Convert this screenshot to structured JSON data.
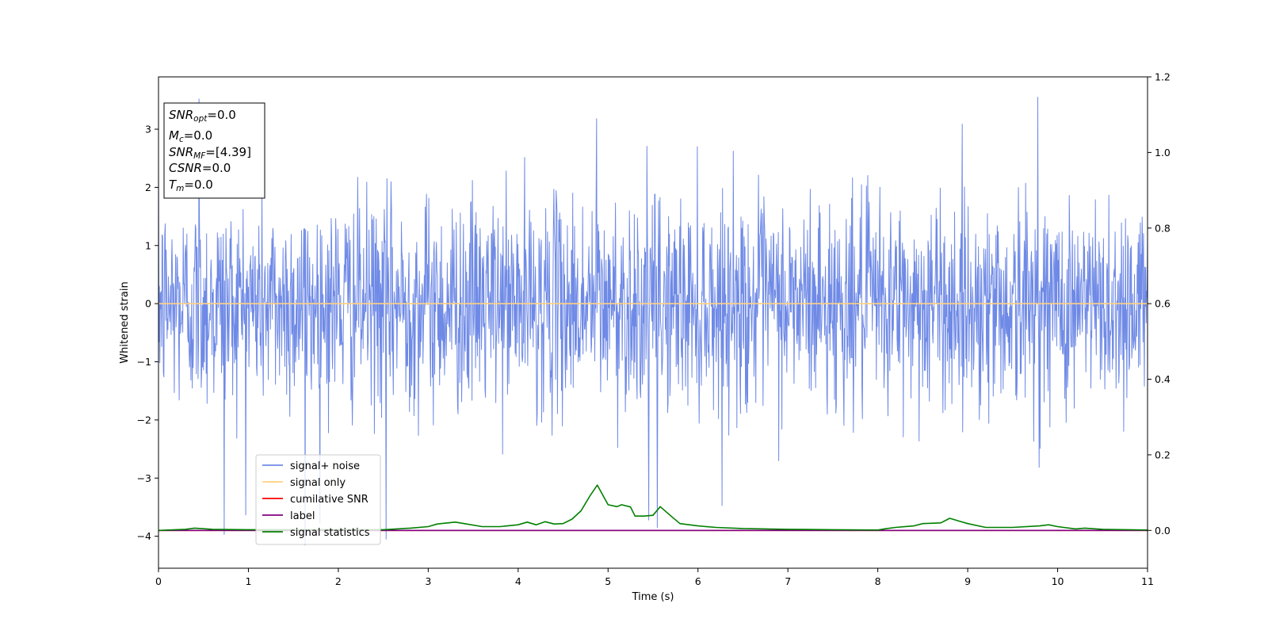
{
  "chart_data": {
    "type": "line",
    "title": "",
    "xlabel": "Time (s)",
    "ylabel": "Whitened strain",
    "xlim": [
      0,
      11
    ],
    "ylim": [
      -4.55,
      3.9
    ],
    "y2lim": [
      -0.1,
      1.2
    ],
    "xticks": [
      "0",
      "1",
      "2",
      "3",
      "4",
      "5",
      "6",
      "7",
      "8",
      "9",
      "10",
      "11"
    ],
    "yticks": [
      {
        "value": 3,
        "label": "3"
      },
      {
        "value": 2,
        "label": "2"
      },
      {
        "value": 1,
        "label": "1"
      },
      {
        "value": 0,
        "label": "0"
      },
      {
        "value": -1,
        "label": "−1"
      },
      {
        "value": -2,
        "label": "−2"
      },
      {
        "value": -3,
        "label": "−3"
      },
      {
        "value": -4,
        "label": "−4"
      }
    ],
    "y2ticks": [
      "0.0",
      "0.2",
      "0.4",
      "0.6",
      "0.8",
      "1.0",
      "1.2"
    ],
    "grid": false,
    "legend_placement": "lower-left",
    "legend": [
      {
        "label": "signal+ noise",
        "color": "#6f8ae6"
      },
      {
        "label": "signal only",
        "color": "#ffd080"
      },
      {
        "label": "cumilative SNR",
        "color": "#ff0000"
      },
      {
        "label": "label",
        "color": "#800080"
      },
      {
        "label": "signal statistics",
        "color": "#008000"
      }
    ],
    "series": [
      {
        "name": "signal+ noise",
        "axis": "left",
        "color": "#6f8ae6",
        "noise_sigma": 0.9,
        "noise_samples": 2200,
        "peaks": [
          [
            0.45,
            3.52
          ],
          [
            9.78,
            3.55
          ],
          [
            0.73,
            -3.97
          ],
          [
            1.63,
            -4.15
          ],
          [
            2.53,
            -4.05
          ],
          [
            4.87,
            3.18
          ],
          [
            5.45,
            -3.72
          ],
          [
            5.55,
            -3.85
          ]
        ]
      },
      {
        "name": "signal only",
        "axis": "left",
        "color": "#ffd080",
        "x": [
          0,
          11
        ],
        "y": [
          0,
          0
        ]
      },
      {
        "name": "cumilative SNR",
        "axis": "right",
        "color": "#ff0000",
        "x": [
          0,
          11
        ],
        "y": [
          0,
          0
        ]
      },
      {
        "name": "label",
        "axis": "right",
        "color": "#800080",
        "x": [
          0,
          11
        ],
        "y": [
          0,
          0
        ]
      },
      {
        "name": "signal statistics",
        "axis": "right",
        "color": "#008000",
        "x": [
          0,
          0.3,
          0.4,
          0.6,
          1.0,
          1.5,
          2.0,
          2.5,
          2.8,
          3.0,
          3.1,
          3.3,
          3.4,
          3.6,
          3.8,
          4.0,
          4.1,
          4.2,
          4.3,
          4.4,
          4.5,
          4.6,
          4.7,
          4.8,
          4.88,
          5.0,
          5.1,
          5.15,
          5.25,
          5.3,
          5.4,
          5.5,
          5.58,
          5.7,
          5.8,
          6.0,
          6.2,
          6.5,
          7.0,
          7.5,
          8.0,
          8.1,
          8.2,
          8.4,
          8.5,
          8.7,
          8.8,
          8.9,
          9.0,
          9.2,
          9.5,
          9.8,
          9.9,
          10.0,
          10.2,
          10.3,
          10.5,
          11.0
        ],
        "y": [
          0,
          0.003,
          0.006,
          0.003,
          0.002,
          0.002,
          0.002,
          0.002,
          0.006,
          0.01,
          0.017,
          0.022,
          0.018,
          0.01,
          0.01,
          0.015,
          0.022,
          0.015,
          0.023,
          0.017,
          0.018,
          0.03,
          0.052,
          0.092,
          0.12,
          0.068,
          0.063,
          0.068,
          0.062,
          0.038,
          0.038,
          0.04,
          0.063,
          0.038,
          0.018,
          0.012,
          0.008,
          0.005,
          0.003,
          0.002,
          0.001,
          0.005,
          0.008,
          0.012,
          0.018,
          0.02,
          0.032,
          0.025,
          0.018,
          0.008,
          0.008,
          0.012,
          0.015,
          0.01,
          0.004,
          0.006,
          0.003,
          0.001
        ]
      }
    ]
  },
  "annotation_box": {
    "lines": [
      {
        "main": "SNR",
        "sub": "opt",
        "rest": "=0.0"
      },
      {
        "main": "M",
        "sub": "c",
        "rest": "=0.0"
      },
      {
        "main": "SNR",
        "sub": "MF",
        "rest": "=[4.39]"
      },
      {
        "main": "CSNR",
        "sub": "",
        "rest": "=0.0"
      },
      {
        "main": "T",
        "sub": "m",
        "rest": "=0.0"
      }
    ]
  }
}
